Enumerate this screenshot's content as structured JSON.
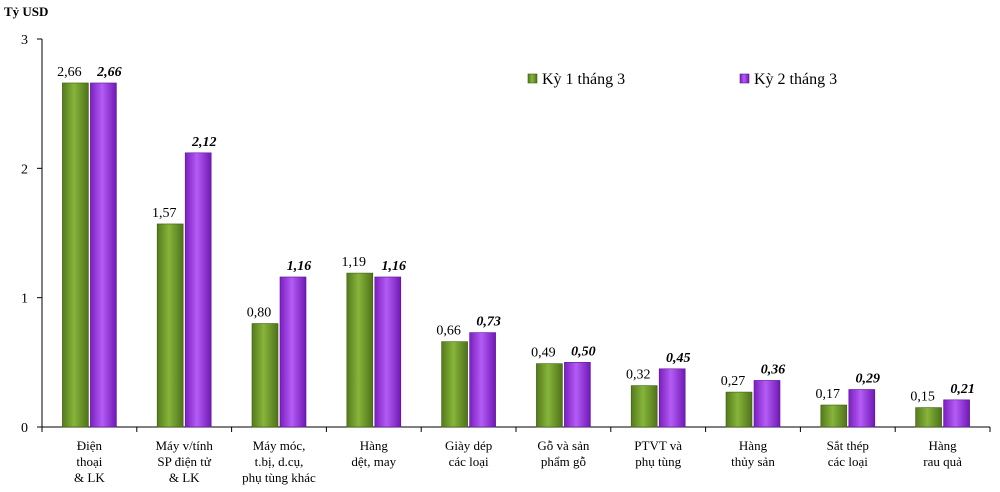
{
  "chart_data": {
    "type": "bar",
    "ylabel": "Tỷ USD",
    "ylim": [
      0,
      3
    ],
    "yticks": [
      "0",
      "1",
      "2",
      "3"
    ],
    "legend_position": "top-right",
    "categories": [
      [
        "Điện",
        "thoại",
        "& LK"
      ],
      [
        "Máy v/tính",
        "SP điện tử",
        "& LK"
      ],
      [
        "Máy móc,",
        "t.bị, d.cụ,",
        "phụ tùng khác"
      ],
      [
        "Hàng",
        "dệt, may"
      ],
      [
        "Giày dép",
        "các loại"
      ],
      [
        "Gỗ và sản",
        "phẩm gỗ"
      ],
      [
        "PTVT và",
        "phụ tùng"
      ],
      [
        "Hàng",
        "thủy sản"
      ],
      [
        "Sắt thép",
        "các loại"
      ],
      [
        "Hàng",
        "rau quả"
      ]
    ],
    "series": [
      {
        "name": "Kỳ 1 tháng 3",
        "color": "#6f9a2c",
        "values": [
          2.66,
          1.57,
          0.8,
          1.19,
          0.66,
          0.49,
          0.32,
          0.27,
          0.17,
          0.15
        ],
        "labels": [
          "2,66",
          "1,57",
          "0,80",
          "1,19",
          "0,66",
          "0,49",
          "0,32",
          "0,27",
          "0,17",
          "0,15"
        ]
      },
      {
        "name": "Kỳ 2 tháng 3",
        "color": "#9b2ee0",
        "values": [
          2.66,
          2.12,
          1.16,
          1.16,
          0.73,
          0.5,
          0.45,
          0.36,
          0.29,
          0.21
        ],
        "labels": [
          "2,66",
          "2,12",
          "1,16",
          "1,16",
          "0,73",
          "0,50",
          "0,45",
          "0,36",
          "0,29",
          "0,21"
        ]
      }
    ]
  }
}
